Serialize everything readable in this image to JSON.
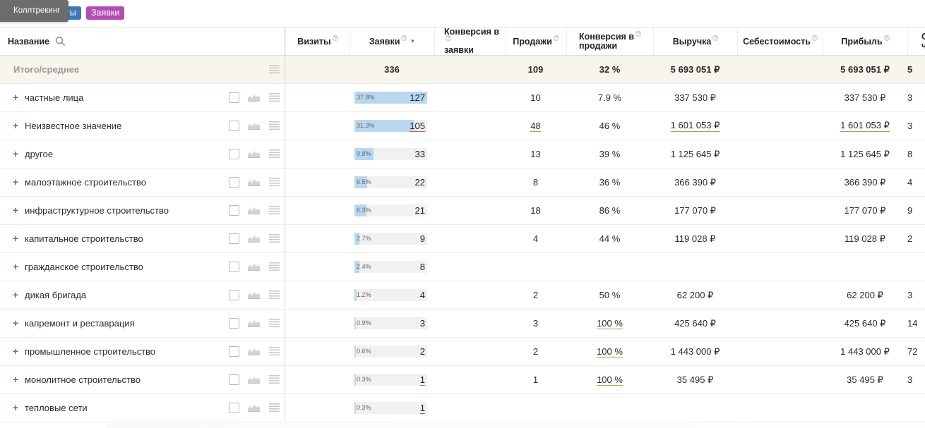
{
  "topbar": {
    "tooltip": "Коллтрекинг",
    "tags": [
      {
        "label": "Визиты",
        "color": "#3f77b8"
      },
      {
        "label": "Заявки",
        "color": "#b34bb4"
      }
    ]
  },
  "header": {
    "name": "Название",
    "visits": "Визиты",
    "leads": "Заявки",
    "conv_leads_1": "Конверсия в",
    "conv_leads_2": "заявки",
    "sales": "Продажи",
    "conv_sales_1": "Конверсия в",
    "conv_sales_2": "продажи",
    "revenue": "Выручка",
    "cost": "Себестоимость",
    "profit": "Прибыль",
    "extra_1": "С",
    "extra_2": "ч",
    "hint_icon": "question-circle-icon",
    "sort_icon": "sort-desc-icon"
  },
  "total": {
    "label": "Итого/среднее",
    "leads": "336",
    "sales": "109",
    "conv_sales": "32 %",
    "revenue": "5 693 051 ₽",
    "profit": "5 693 051 ₽",
    "extra": "5"
  },
  "rows": [
    {
      "name": "частные лица",
      "leads_pct": "37.8%",
      "leads_share": 0.378,
      "leads": "127",
      "sales": "10",
      "conv": "7.9 %",
      "revenue": "337 530 ₽",
      "profit": "337 530 ₽",
      "extra": "3"
    },
    {
      "name": "Неизвестное значение",
      "leads_pct": "31.3%",
      "leads_share": 0.313,
      "leads": "105",
      "sales": "48",
      "conv": "46 %",
      "revenue": "1 601 053 ₽",
      "profit": "1 601 053 ₽",
      "extra": "3"
    },
    {
      "name": "другое",
      "leads_pct": "9.8%",
      "leads_share": 0.098,
      "leads": "33",
      "sales": "13",
      "conv": "39 %",
      "revenue": "1 125 645 ₽",
      "profit": "1 125 645 ₽",
      "extra": "8"
    },
    {
      "name": "малоэтажное строительство",
      "leads_pct": "6.5%",
      "leads_share": 0.065,
      "leads": "22",
      "sales": "8",
      "conv": "36 %",
      "revenue": "366 390 ₽",
      "profit": "366 390 ₽",
      "extra": "4"
    },
    {
      "name": "инфраструктурное строительство",
      "leads_pct": "6.3%",
      "leads_share": 0.063,
      "leads": "21",
      "sales": "18",
      "conv": "86 %",
      "revenue": "177 070 ₽",
      "profit": "177 070 ₽",
      "extra": "9"
    },
    {
      "name": "капитальное строительство",
      "leads_pct": "2.7%",
      "leads_share": 0.027,
      "leads": "9",
      "sales": "4",
      "conv": "44 %",
      "revenue": "119 028 ₽",
      "profit": "119 028 ₽",
      "extra": "2"
    },
    {
      "name": "гражданское строительство",
      "leads_pct": "2.4%",
      "leads_share": 0.024,
      "leads": "8",
      "sales": "",
      "conv": "",
      "revenue": "",
      "profit": "",
      "extra": ""
    },
    {
      "name": "дикая бригада",
      "leads_pct": "1.2%",
      "leads_share": 0.012,
      "leads": "4",
      "sales": "2",
      "conv": "50 %",
      "revenue": "62 200 ₽",
      "profit": "62 200 ₽",
      "extra": "3"
    },
    {
      "name": "капремонт и реставрация",
      "leads_pct": "0.9%",
      "leads_share": 0.009,
      "leads": "3",
      "sales": "3",
      "conv": "100 %",
      "revenue": "425 640 ₽",
      "profit": "425 640 ₽",
      "extra": "14"
    },
    {
      "name": "промышленное строительство",
      "leads_pct": "0.6%",
      "leads_share": 0.006,
      "leads": "2",
      "sales": "2",
      "conv": "100 %",
      "revenue": "1 443 000 ₽",
      "profit": "1 443 000 ₽",
      "extra": "72"
    },
    {
      "name": "монолитное строительство",
      "leads_pct": "0.3%",
      "leads_share": 0.003,
      "leads": "1",
      "sales": "1",
      "conv": "100 %",
      "revenue": "35 495 ₽",
      "profit": "35 495 ₽",
      "extra": "3"
    },
    {
      "name": "тепловые сети",
      "leads_pct": "0.3%",
      "leads_share": 0.003,
      "leads": "1",
      "sales": "",
      "conv": "",
      "revenue": "",
      "profit": "",
      "extra": ""
    }
  ],
  "colors": {
    "accent_blue": "#3d76b9",
    "bar_fill": "#b9d7ef",
    "total_row_bg": "#f8f5ec",
    "underline_green": "#7ab84a",
    "underline_red": "#d9534f"
  }
}
